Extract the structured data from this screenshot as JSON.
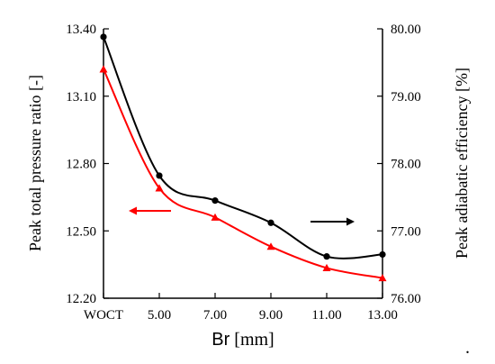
{
  "chart_data": {
    "type": "line",
    "x_tick_labels": [
      "WOCT",
      "5.00",
      "7.00",
      "9.00",
      "11.00",
      "13.00"
    ],
    "x": [
      3,
      5,
      7,
      9,
      11,
      13
    ],
    "xlim": [
      3,
      13
    ],
    "xlabel": "Br",
    "xlabel_unit": " [mm]",
    "ylabel_left": "Peak total pressure ratio [-]",
    "ylabel_right": "Peak adiabatic efficiency [%]",
    "ylim_left": [
      12.2,
      13.4
    ],
    "ylim_right": [
      76.0,
      80.0
    ],
    "y_ticks_left": [
      "13.40",
      "13.10",
      "12.80",
      "12.50",
      "12.20"
    ],
    "y_ticks_right": [
      "80.00",
      "79.00",
      "78.00",
      "77.00",
      "76.00"
    ],
    "grid": false,
    "series": [
      {
        "axis": "left",
        "color": "#ff0000",
        "marker": "triangle",
        "values": [
          13.22,
          12.69,
          12.56,
          12.43,
          12.335,
          12.29
        ]
      },
      {
        "axis": "right",
        "color": "#000000",
        "marker": "circle",
        "values": [
          79.88,
          77.82,
          77.45,
          77.12,
          76.62,
          76.65
        ]
      }
    ],
    "annotations": [
      {
        "type": "arrow",
        "direction": "left",
        "color": "#ff0000",
        "refers_to": "left-axis"
      },
      {
        "type": "arrow",
        "direction": "right",
        "color": "#000000",
        "refers_to": "right-axis"
      }
    ],
    "trailing_mark": "."
  }
}
